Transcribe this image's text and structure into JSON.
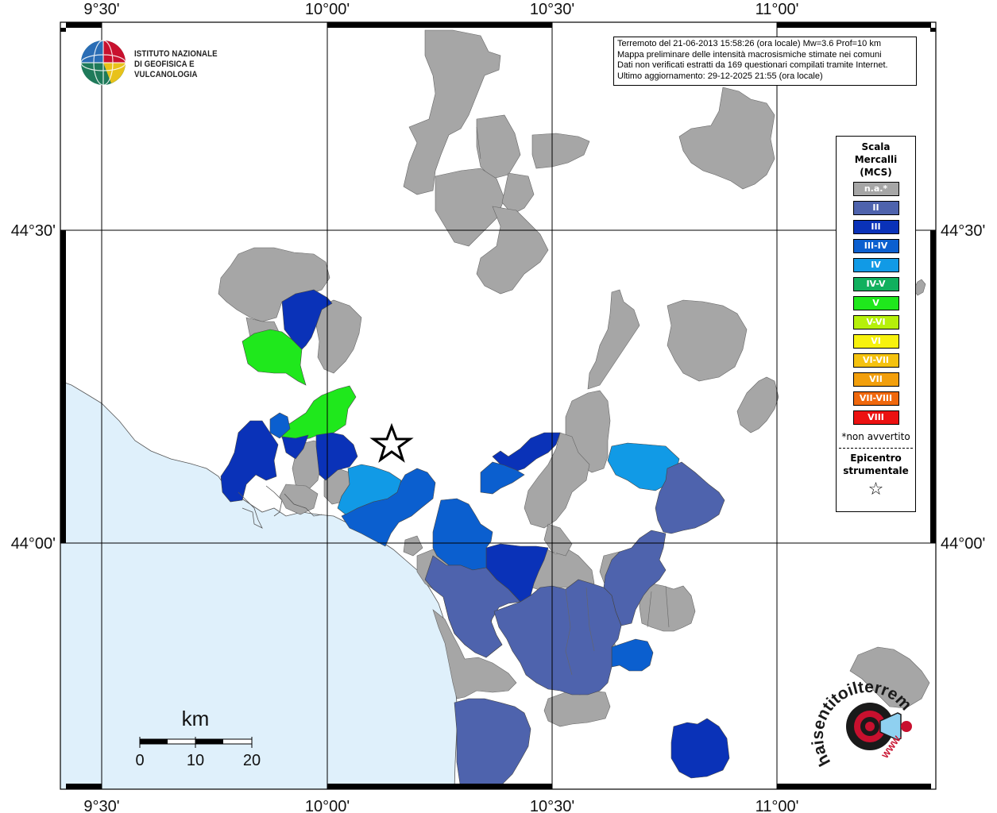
{
  "info": {
    "lines": [
      "Terremoto del 21-06-2013 15:58:26 (ora locale) Mw=3.6 Prof=10 km",
      "Mappa preliminare delle intensità macrosismiche stimate nei comuni",
      "Dati non verificati estratti da 169 questionari compilati tramite Internet.",
      "Ultimo aggiornamento: 29-12-2025 21:55 (ora locale)"
    ]
  },
  "logo": {
    "line1": "ISTITUTO NAZIONALE",
    "line2": "DI GEOFISICA E VULCANOLOGIA"
  },
  "axes": {
    "lon_labels": [
      "9°30'",
      "10°00'",
      "10°30'",
      "11°00'"
    ],
    "lat_labels": [
      "44°30'",
      "44°00'"
    ]
  },
  "legend": {
    "title_lines": [
      "Scala",
      "Mercalli",
      "(MCS)"
    ],
    "items": [
      {
        "label": "n.a.*",
        "color": "#a6a6a6"
      },
      {
        "label": "II",
        "color": "#4e63ad"
      },
      {
        "label": "III",
        "color": "#0a32b8"
      },
      {
        "label": "III-IV",
        "color": "#0b5fcf"
      },
      {
        "label": "IV",
        "color": "#119ae6"
      },
      {
        "label": "IV-V",
        "color": "#11b05e"
      },
      {
        "label": "V",
        "color": "#1fe81c"
      },
      {
        "label": "V-VI",
        "color": "#b6f00a"
      },
      {
        "label": "VI",
        "color": "#f7f20e"
      },
      {
        "label": "VI-VII",
        "color": "#f5c20f"
      },
      {
        "label": "VII",
        "color": "#f29f0c"
      },
      {
        "label": "VII-VIII",
        "color": "#f0680d"
      },
      {
        "label": "VIII",
        "color": "#ec1111"
      }
    ],
    "note": "*non avvertito",
    "epicenter_lines": [
      "Epicentro",
      "strumentale"
    ],
    "star": "☆"
  },
  "scalebar": {
    "title": "km",
    "labels": [
      "0",
      "10",
      "20"
    ]
  },
  "hsit": {
    "text": "haisentitoilterremoto.it",
    "url": "WWW."
  },
  "colors": {
    "sea": "#dff0fb",
    "na": "#a6a6a6",
    "II": "#4e63ad",
    "III": "#0a32b8",
    "III-IV": "#0b5fcf",
    "IV": "#119ae6",
    "V": "#1fe81c"
  }
}
